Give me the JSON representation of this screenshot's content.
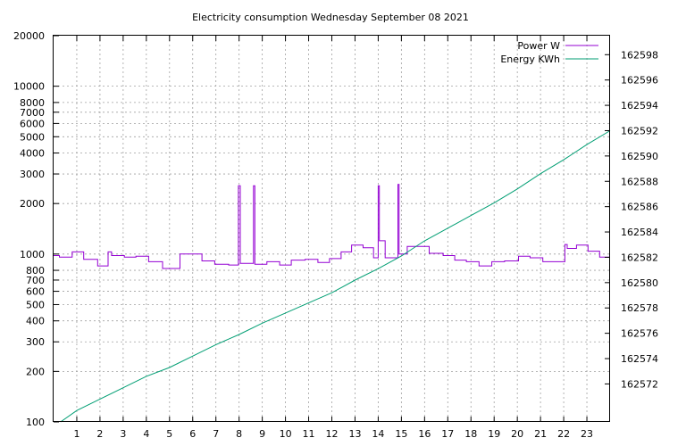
{
  "chart_data": {
    "type": "line",
    "title": "Electricity consumption Wednesday September 08 2021",
    "xlabel": "",
    "ylabel": "",
    "y2label": "",
    "grid": true,
    "legend_position": "top-right",
    "xlim": [
      0,
      24
    ],
    "ylim": [
      100,
      20000
    ],
    "y_scale": "log",
    "y2lim": [
      162569,
      162599.5
    ],
    "x_ticks": [
      1,
      2,
      3,
      4,
      5,
      6,
      7,
      8,
      9,
      10,
      11,
      12,
      13,
      14,
      15,
      16,
      17,
      18,
      19,
      20,
      21,
      22,
      23
    ],
    "y_ticks": [
      100,
      200,
      300,
      400,
      500,
      600,
      700,
      800,
      1000,
      2000,
      3000,
      4000,
      5000,
      6000,
      7000,
      8000,
      10000,
      20000
    ],
    "y2_ticks": [
      162572,
      162574,
      162576,
      162578,
      162580,
      162582,
      162584,
      162586,
      162588,
      162590,
      162592,
      162594,
      162596,
      162598
    ],
    "series": [
      {
        "name": "Power W",
        "color": "#9400d3",
        "axis": "left",
        "step": true,
        "points": [
          [
            0,
            980
          ],
          [
            0.25,
            960
          ],
          [
            0.8,
            1030
          ],
          [
            1.3,
            930
          ],
          [
            1.9,
            850
          ],
          [
            2.35,
            1030
          ],
          [
            2.5,
            980
          ],
          [
            3.05,
            960
          ],
          [
            3.55,
            970
          ],
          [
            4.1,
            900
          ],
          [
            4.7,
            820
          ],
          [
            5.45,
            1000
          ],
          [
            6.4,
            910
          ],
          [
            6.95,
            870
          ],
          [
            7.55,
            860
          ],
          [
            7.97,
            2550
          ],
          [
            8.05,
            880
          ],
          [
            8.62,
            2550
          ],
          [
            8.68,
            870
          ],
          [
            9.2,
            900
          ],
          [
            9.75,
            860
          ],
          [
            10.25,
            920
          ],
          [
            10.85,
            930
          ],
          [
            11.4,
            890
          ],
          [
            11.9,
            940
          ],
          [
            12.4,
            1030
          ],
          [
            12.85,
            1130
          ],
          [
            13.35,
            1090
          ],
          [
            13.8,
            950
          ],
          [
            14.0,
            2550
          ],
          [
            14.05,
            1200
          ],
          [
            14.3,
            950
          ],
          [
            14.85,
            2600
          ],
          [
            14.9,
            1000
          ],
          [
            15.25,
            1110
          ],
          [
            16.2,
            1010
          ],
          [
            16.8,
            980
          ],
          [
            17.3,
            920
          ],
          [
            17.8,
            900
          ],
          [
            18.35,
            850
          ],
          [
            18.9,
            900
          ],
          [
            19.45,
            910
          ],
          [
            20.05,
            970
          ],
          [
            20.55,
            950
          ],
          [
            21.1,
            900
          ],
          [
            22.05,
            1140
          ],
          [
            22.15,
            1080
          ],
          [
            22.55,
            1130
          ],
          [
            23.05,
            1040
          ],
          [
            23.55,
            960
          ],
          [
            24.0,
            960
          ]
        ]
      },
      {
        "name": "Energy KWh",
        "color": "#009e73",
        "axis": "right",
        "step": false,
        "points": [
          [
            0.3,
            162569.0
          ],
          [
            1,
            162569.9
          ],
          [
            2,
            162570.8
          ],
          [
            3,
            162571.7
          ],
          [
            4,
            162572.6
          ],
          [
            5,
            162573.3
          ],
          [
            6,
            162574.2
          ],
          [
            7,
            162575.1
          ],
          [
            8,
            162575.9
          ],
          [
            9,
            162576.8
          ],
          [
            10,
            162577.6
          ],
          [
            11,
            162578.4
          ],
          [
            12,
            162579.2
          ],
          [
            13,
            162580.2
          ],
          [
            14,
            162581.1
          ],
          [
            15,
            162582.1
          ],
          [
            16,
            162583.3
          ],
          [
            17,
            162584.3
          ],
          [
            18,
            162585.3
          ],
          [
            19,
            162586.3
          ],
          [
            20,
            162587.4
          ],
          [
            21,
            162588.6
          ],
          [
            22,
            162589.7
          ],
          [
            23,
            162590.9
          ],
          [
            24,
            162592.0
          ]
        ]
      }
    ]
  }
}
